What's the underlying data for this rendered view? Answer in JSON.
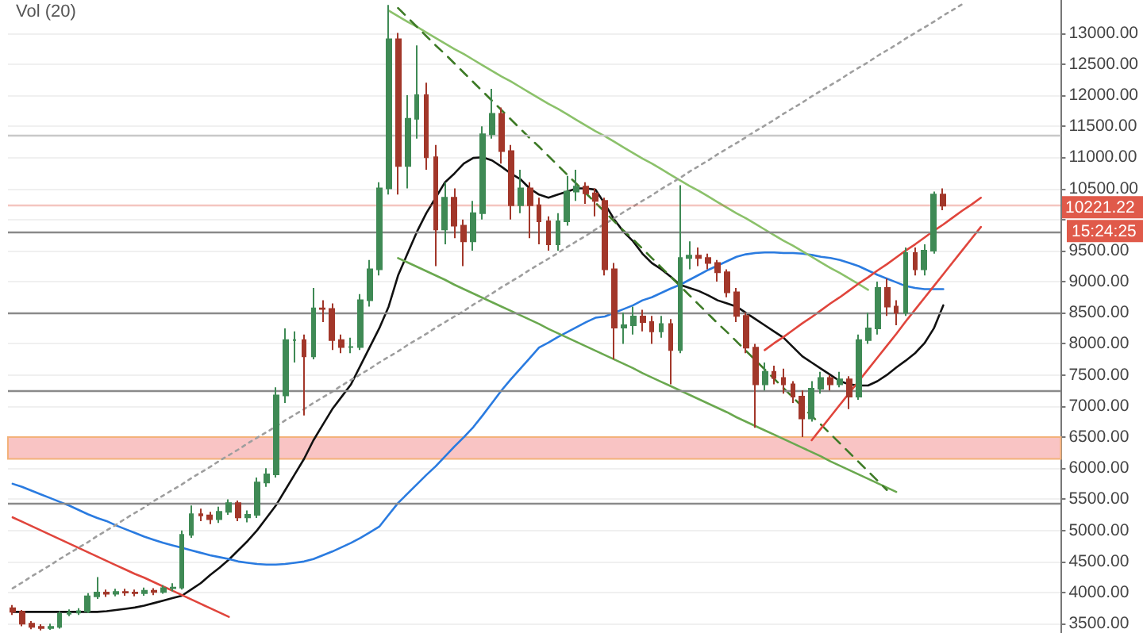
{
  "chart_data": {
    "type": "candlestick",
    "categories": [
      null,
      null,
      null,
      null,
      null,
      null,
      null,
      null,
      null,
      null,
      null,
      null,
      null,
      null,
      null,
      null,
      null,
      null,
      null,
      null,
      null,
      null,
      null,
      null,
      null,
      null,
      null,
      null,
      null,
      null,
      null,
      null,
      null,
      null,
      null,
      null,
      null,
      null,
      null,
      null,
      null,
      null,
      null,
      null,
      null,
      null,
      null,
      null,
      null,
      null,
      null,
      null,
      null,
      null,
      null,
      null,
      null,
      null,
      null,
      null,
      null,
      null,
      null,
      null,
      null,
      null,
      null,
      null,
      null,
      null,
      null,
      null,
      null,
      null,
      null,
      null,
      null,
      null,
      null,
      null,
      null,
      null,
      null,
      null,
      null,
      null,
      null,
      null,
      null,
      null,
      null,
      null,
      null,
      null,
      null,
      null,
      null,
      null,
      null,
      null,
      null,
      null,
      null,
      null,
      null,
      null,
      null,
      null,
      null,
      null,
      null,
      null
    ],
    "ohlc": [
      [
        3750,
        3800,
        3640,
        3690
      ],
      [
        3690,
        3720,
        3460,
        3500
      ],
      [
        3500,
        3540,
        3410,
        3450
      ],
      [
        3450,
        3490,
        3390,
        3430
      ],
      [
        3430,
        3500,
        3400,
        3450
      ],
      [
        3450,
        3700,
        3420,
        3660
      ],
      [
        3660,
        3730,
        3620,
        3680
      ],
      [
        3680,
        3750,
        3640,
        3700
      ],
      [
        3700,
        3990,
        3670,
        3940
      ],
      [
        3940,
        4250,
        3900,
        4000
      ],
      [
        4000,
        4050,
        3930,
        3980
      ],
      [
        3980,
        4060,
        3940,
        4010
      ],
      [
        4010,
        4060,
        3950,
        4000
      ],
      [
        4000,
        4050,
        3940,
        3990
      ],
      [
        3990,
        4080,
        3950,
        4030
      ],
      [
        4030,
        4070,
        3960,
        4010
      ],
      [
        4010,
        4120,
        3980,
        4070
      ],
      [
        4070,
        4150,
        4020,
        4080
      ],
      [
        4080,
        5000,
        4050,
        4930
      ],
      [
        4930,
        5400,
        4880,
        5260
      ],
      [
        5260,
        5350,
        5150,
        5240
      ],
      [
        5240,
        5300,
        5100,
        5180
      ],
      [
        5180,
        5380,
        5120,
        5300
      ],
      [
        5300,
        5500,
        5250,
        5440
      ],
      [
        5440,
        5480,
        5150,
        5210
      ],
      [
        5210,
        5320,
        5130,
        5250
      ],
      [
        5250,
        5850,
        5200,
        5770
      ],
      [
        5770,
        6000,
        5700,
        5900
      ],
      [
        5900,
        7300,
        5850,
        7170
      ],
      [
        7170,
        8250,
        7050,
        8060
      ],
      [
        8060,
        8200,
        7700,
        8060
      ],
      [
        8060,
        8150,
        6850,
        7800
      ],
      [
        7800,
        8900,
        7750,
        8570
      ],
      [
        8570,
        8700,
        8350,
        8560
      ],
      [
        8560,
        8650,
        7900,
        8060
      ],
      [
        8060,
        8150,
        7850,
        7950
      ],
      [
        7950,
        8100,
        7850,
        7950
      ],
      [
        7950,
        8800,
        7900,
        8700
      ],
      [
        8700,
        9350,
        8600,
        9200
      ],
      [
        9200,
        10600,
        9100,
        10500
      ],
      [
        10500,
        13450,
        10400,
        12900
      ],
      [
        12900,
        13000,
        10400,
        10860
      ],
      [
        10860,
        12000,
        10500,
        11620
      ],
      [
        11620,
        12800,
        11300,
        12000
      ],
      [
        12000,
        12200,
        10800,
        11000
      ],
      [
        11000,
        11200,
        9250,
        9840
      ],
      [
        9840,
        10600,
        9600,
        10350
      ],
      [
        10350,
        10500,
        9700,
        9900
      ],
      [
        9900,
        10000,
        9250,
        9650
      ],
      [
        9650,
        10300,
        9500,
        10100
      ],
      [
        10100,
        11500,
        10000,
        11370
      ],
      [
        11370,
        12100,
        11300,
        11700
      ],
      [
        11700,
        11800,
        10900,
        11100
      ],
      [
        11100,
        11200,
        10000,
        10230
      ],
      [
        10230,
        10800,
        10100,
        10500
      ],
      [
        10500,
        10600,
        9700,
        10230
      ],
      [
        10230,
        10350,
        9600,
        9970
      ],
      [
        9970,
        10050,
        9500,
        9600
      ],
      [
        9600,
        10100,
        9500,
        9970
      ],
      [
        9970,
        10700,
        9900,
        10450
      ],
      [
        10450,
        10800,
        10300,
        10530
      ],
      [
        10530,
        10600,
        10250,
        10420
      ],
      [
        10420,
        10500,
        10050,
        10300
      ],
      [
        10300,
        10350,
        9100,
        9200
      ],
      [
        9200,
        9300,
        7750,
        8260
      ],
      [
        8260,
        8500,
        8000,
        8300
      ],
      [
        8300,
        8600,
        8150,
        8440
      ],
      [
        8440,
        8550,
        8200,
        8350
      ],
      [
        8350,
        8450,
        8000,
        8200
      ],
      [
        8200,
        8450,
        8100,
        8320
      ],
      [
        8320,
        8400,
        7350,
        7900
      ],
      [
        7900,
        10550,
        7850,
        9380
      ],
      [
        9380,
        9650,
        9200,
        9420
      ],
      [
        9420,
        9550,
        9250,
        9380
      ],
      [
        9380,
        9450,
        9200,
        9300
      ],
      [
        9300,
        9350,
        9000,
        9150
      ],
      [
        9150,
        9200,
        8750,
        8830
      ],
      [
        8830,
        8900,
        8350,
        8450
      ],
      [
        8450,
        8500,
        7850,
        7940
      ],
      [
        7940,
        8000,
        6650,
        7350
      ],
      [
        7350,
        7700,
        7250,
        7550
      ],
      [
        7550,
        7650,
        7350,
        7450
      ],
      [
        7450,
        7600,
        7200,
        7350
      ],
      [
        7350,
        7400,
        7050,
        7150
      ],
      [
        7150,
        7250,
        6500,
        6800
      ],
      [
        6800,
        7400,
        6750,
        7280
      ],
      [
        7280,
        7550,
        7200,
        7450
      ],
      [
        7450,
        7500,
        7250,
        7350
      ],
      [
        7350,
        7550,
        7300,
        7430
      ],
      [
        7430,
        7480,
        6950,
        7150
      ],
      [
        7150,
        8150,
        7100,
        8060
      ],
      [
        8060,
        8500,
        8000,
        8250
      ],
      [
        8250,
        9000,
        8150,
        8900
      ],
      [
        8900,
        9050,
        8450,
        8600
      ],
      [
        8600,
        8700,
        8300,
        8500
      ],
      [
        8500,
        9550,
        8450,
        9460
      ],
      [
        9460,
        9550,
        9100,
        9200
      ],
      [
        9200,
        9600,
        9100,
        9500
      ],
      [
        9500,
        10450,
        9450,
        10400
      ],
      [
        10400,
        10500,
        10150,
        10221.22
      ],
      null,
      null,
      null,
      null,
      null,
      null,
      null,
      null,
      null,
      null,
      null,
      null
    ],
    "series": [
      {
        "type": "line",
        "color": "#111111",
        "values": [
          3690,
          3690,
          3690,
          3690,
          3690,
          3690,
          3690,
          3690,
          3690,
          3690,
          3700,
          3720,
          3740,
          3760,
          3790,
          3830,
          3870,
          3910,
          3950,
          4050,
          4150,
          4280,
          4400,
          4530,
          4680,
          4830,
          5000,
          5200,
          5400,
          5650,
          5900,
          6150,
          6450,
          6700,
          6950,
          7150,
          7350,
          7650,
          7950,
          8250,
          8600,
          9100,
          9450,
          9800,
          10100,
          10350,
          10600,
          10740,
          10900,
          10990,
          11000,
          10950,
          10850,
          10740,
          10650,
          10500,
          10400,
          10350,
          10400,
          10450,
          10500,
          10500,
          10480,
          10250,
          10000,
          9800,
          9650,
          9450,
          9300,
          9200,
          9080,
          8950,
          8900,
          8850,
          8780,
          8700,
          8650,
          8600,
          8500,
          8400,
          8300,
          8200,
          8100,
          7950,
          7800,
          7700,
          7600,
          7500,
          7400,
          7350,
          7330,
          7330,
          7400,
          7500,
          7620,
          7730,
          7850,
          8010,
          8250,
          8620,
          null,
          null,
          null,
          null,
          null,
          null,
          null,
          null,
          null,
          null,
          null,
          null
        ]
      },
      {
        "type": "line",
        "color": "#2a7be0",
        "values": [
          5750,
          5700,
          5640,
          5580,
          5520,
          5460,
          5400,
          5330,
          5260,
          5200,
          5150,
          5080,
          5020,
          4960,
          4900,
          4850,
          4800,
          4760,
          4720,
          4680,
          4640,
          4600,
          4570,
          4540,
          4500,
          4480,
          4460,
          4450,
          4450,
          4460,
          4480,
          4500,
          4540,
          4600,
          4660,
          4730,
          4800,
          4880,
          4970,
          5060,
          5250,
          5440,
          5590,
          5740,
          5890,
          6030,
          6190,
          6350,
          6500,
          6660,
          6850,
          7050,
          7250,
          7430,
          7600,
          7770,
          7940,
          8020,
          8110,
          8190,
          8270,
          8350,
          8420,
          8440,
          8500,
          8560,
          8620,
          8700,
          8750,
          8820,
          8890,
          8950,
          9030,
          9110,
          9190,
          9260,
          9330,
          9400,
          9440,
          9460,
          9470,
          9470,
          9460,
          9460,
          9450,
          9430,
          9400,
          9380,
          9350,
          9300,
          9250,
          9180,
          9110,
          9050,
          8990,
          8930,
          8900,
          8880,
          8880,
          8880,
          null,
          null,
          null,
          null,
          null,
          null,
          null,
          null,
          null,
          null,
          null,
          null
        ]
      },
      {
        "type": "line",
        "color": "#8bc16a",
        "values": [
          null,
          null,
          null,
          null,
          null,
          null,
          null,
          null,
          null,
          null,
          null,
          null,
          null,
          null,
          null,
          null,
          null,
          null,
          null,
          null,
          null,
          null,
          null,
          null,
          null,
          null,
          null,
          null,
          null,
          null,
          null,
          null,
          null,
          null,
          null,
          null,
          null,
          null,
          null,
          null,
          13360,
          13270,
          13180,
          13100,
          13010,
          12920,
          12830,
          12740,
          12660,
          12570,
          12480,
          12390,
          12300,
          12220,
          12130,
          12040,
          11950,
          11860,
          11780,
          11690,
          11600,
          11510,
          11420,
          11340,
          11250,
          11160,
          11070,
          10980,
          10900,
          10810,
          10720,
          10630,
          10540,
          10460,
          10370,
          10280,
          10190,
          10100,
          10020,
          9930,
          9840,
          9750,
          9660,
          9580,
          9490,
          9400,
          9310,
          9220,
          9140,
          9050,
          8960,
          8870,
          null,
          null,
          null,
          null,
          null,
          null,
          null,
          null,
          null,
          null,
          null,
          null,
          null,
          null,
          null,
          null,
          null,
          null,
          null,
          null
        ]
      },
      {
        "type": "line",
        "color": "#6aa84f",
        "values": [
          null,
          null,
          null,
          null,
          null,
          null,
          null,
          null,
          null,
          null,
          null,
          null,
          null,
          null,
          null,
          null,
          null,
          null,
          null,
          null,
          null,
          null,
          null,
          null,
          null,
          null,
          null,
          null,
          null,
          null,
          null,
          null,
          null,
          null,
          null,
          null,
          null,
          null,
          null,
          null,
          null,
          9380,
          9310,
          9240,
          9170,
          9100,
          9030,
          8950,
          8880,
          8810,
          8740,
          8670,
          8600,
          8530,
          8460,
          8390,
          8320,
          8240,
          8170,
          8100,
          8030,
          7960,
          7890,
          7820,
          7750,
          7680,
          7610,
          7530,
          7460,
          7390,
          7320,
          7250,
          7180,
          7110,
          7040,
          6970,
          6900,
          6820,
          6750,
          6680,
          6610,
          6540,
          6470,
          6400,
          6330,
          6260,
          6190,
          6110,
          6040,
          5970,
          5900,
          5830,
          5760,
          5690,
          5620,
          null,
          null,
          null,
          null,
          null,
          null,
          null,
          null,
          null,
          null,
          null,
          null,
          null,
          null,
          null,
          null,
          null
        ]
      },
      {
        "type": "line",
        "color": "#3d7a26",
        "line_style": "dashed",
        "values": [
          null,
          null,
          null,
          null,
          null,
          null,
          null,
          null,
          null,
          null,
          null,
          null,
          null,
          null,
          null,
          null,
          null,
          null,
          null,
          null,
          null,
          null,
          null,
          null,
          null,
          null,
          null,
          null,
          null,
          null,
          null,
          null,
          null,
          null,
          null,
          null,
          null,
          null,
          null,
          null,
          null,
          13400,
          13250,
          13100,
          12950,
          12800,
          12660,
          12510,
          12360,
          12210,
          12060,
          11910,
          11760,
          11610,
          11460,
          11310,
          11170,
          11020,
          10870,
          10720,
          10570,
          10420,
          10270,
          10120,
          9970,
          9820,
          9680,
          9530,
          9380,
          9230,
          9080,
          8930,
          8780,
          8630,
          8480,
          8330,
          8190,
          8040,
          7890,
          7740,
          7590,
          7440,
          7290,
          7140,
          6990,
          6840,
          6700,
          6550,
          6400,
          6250,
          6100,
          5950,
          5800,
          5650,
          null,
          null,
          null,
          null,
          null,
          null,
          null,
          null,
          null,
          null,
          null,
          null,
          null,
          null,
          null,
          null,
          null,
          null
        ]
      },
      {
        "type": "line",
        "color": "#e0453c",
        "values": [
          null,
          null,
          null,
          null,
          null,
          null,
          null,
          null,
          null,
          null,
          null,
          null,
          null,
          null,
          null,
          null,
          null,
          null,
          null,
          null,
          null,
          null,
          null,
          null,
          null,
          null,
          null,
          null,
          null,
          null,
          null,
          null,
          null,
          null,
          null,
          null,
          null,
          null,
          null,
          null,
          null,
          null,
          null,
          null,
          null,
          null,
          null,
          null,
          null,
          null,
          null,
          null,
          null,
          null,
          null,
          null,
          null,
          null,
          null,
          null,
          null,
          null,
          null,
          null,
          null,
          null,
          null,
          null,
          null,
          null,
          null,
          null,
          null,
          null,
          null,
          null,
          null,
          null,
          null,
          null,
          7900,
          8010,
          8110,
          8220,
          8330,
          8430,
          8540,
          8650,
          8750,
          8860,
          8970,
          9070,
          9180,
          9280,
          9390,
          9500,
          9600,
          9710,
          9820,
          9920,
          10030,
          10140,
          10240,
          10350,
          null,
          null,
          null,
          null,
          null,
          null,
          null,
          null
        ]
      },
      {
        "type": "line",
        "color": "#e0453c",
        "values": [
          null,
          null,
          null,
          null,
          null,
          null,
          null,
          null,
          null,
          null,
          null,
          null,
          null,
          null,
          null,
          null,
          null,
          null,
          null,
          null,
          null,
          null,
          null,
          null,
          null,
          null,
          null,
          null,
          null,
          null,
          null,
          null,
          null,
          null,
          null,
          null,
          null,
          null,
          null,
          null,
          null,
          null,
          null,
          null,
          null,
          null,
          null,
          null,
          null,
          null,
          null,
          null,
          null,
          null,
          null,
          null,
          null,
          null,
          null,
          null,
          null,
          null,
          null,
          null,
          null,
          null,
          null,
          null,
          null,
          null,
          null,
          null,
          null,
          null,
          null,
          null,
          null,
          null,
          null,
          null,
          null,
          null,
          null,
          null,
          null,
          6450,
          6640,
          6830,
          7020,
          7210,
          7400,
          7590,
          7780,
          7970,
          8160,
          8360,
          8550,
          8740,
          8930,
          9120,
          9310,
          9500,
          9690,
          9880,
          null,
          null,
          null,
          null,
          null,
          null,
          null,
          null
        ]
      },
      {
        "type": "line",
        "color": "#e0453c",
        "values": [
          5210,
          5140,
          5070,
          5000,
          4930,
          4860,
          4790,
          4720,
          4650,
          4580,
          4510,
          4440,
          4370,
          4300,
          4240,
          4170,
          4100,
          4030,
          3960,
          3890,
          3820,
          3750,
          3680,
          3610,
          null,
          null,
          null,
          null,
          null,
          null,
          null,
          null,
          null,
          null,
          null,
          null,
          null,
          null,
          null,
          null,
          null,
          null,
          null,
          null,
          null,
          null,
          null,
          null,
          null,
          null,
          null,
          null,
          null,
          null,
          null,
          null,
          null,
          null,
          null,
          null,
          null,
          null,
          null,
          null,
          null,
          null,
          null,
          null,
          null,
          null,
          null,
          null,
          null,
          null,
          null,
          null,
          null,
          null,
          null,
          null,
          null,
          null,
          null,
          null,
          null,
          null,
          null,
          null,
          null,
          null,
          null,
          null,
          null,
          null,
          null,
          null,
          null,
          null,
          null,
          null,
          null,
          null,
          null,
          null,
          null,
          null,
          null,
          null,
          null,
          null,
          null,
          null
        ]
      },
      {
        "type": "line",
        "color": "#9e9e9e",
        "line_style": "dotted",
        "values": [
          4070,
          4160,
          4260,
          4350,
          4440,
          4540,
          4630,
          4720,
          4810,
          4910,
          5000,
          5090,
          5190,
          5280,
          5370,
          5470,
          5560,
          5650,
          5740,
          5840,
          5930,
          6020,
          6120,
          6210,
          6300,
          6400,
          6490,
          6580,
          6670,
          6770,
          6860,
          6950,
          7050,
          7140,
          7230,
          7330,
          7420,
          7510,
          7600,
          7700,
          7790,
          7880,
          7980,
          8070,
          8160,
          8260,
          8350,
          8440,
          8530,
          8630,
          8720,
          8810,
          8910,
          9000,
          9090,
          9190,
          9280,
          9370,
          9460,
          9560,
          9650,
          9740,
          9840,
          9930,
          10020,
          10120,
          10210,
          10300,
          10390,
          10490,
          10580,
          10670,
          10770,
          10860,
          10950,
          11050,
          11140,
          11230,
          11320,
          11420,
          11510,
          11600,
          11700,
          11790,
          11880,
          11980,
          12070,
          12160,
          12250,
          12350,
          12440,
          12530,
          12630,
          12720,
          12810,
          12910,
          13000,
          13090,
          13180,
          13280,
          13370,
          13460,
          null,
          null,
          null,
          null,
          null,
          null,
          null,
          null,
          null,
          null
        ]
      }
    ],
    "ref_lines": [
      {
        "axis": "y",
        "value": 11350,
        "color": "#c8c8c8"
      },
      {
        "axis": "y",
        "value": 10221.22,
        "label": "10221.22",
        "color": "#e05a4a"
      },
      {
        "axis": "y",
        "value": 9790,
        "color": "#8a8a8a"
      },
      {
        "axis": "y",
        "value": 8500,
        "color": "#8a8a8a"
      },
      {
        "axis": "y",
        "value": 7250,
        "color": "#8a8a8a"
      },
      {
        "axis": "y",
        "value": 5440,
        "color": "#8a8a8a"
      }
    ],
    "bands": [
      {
        "axis": "y",
        "from": 6150,
        "to": 6500,
        "color": "#f9c4c4"
      }
    ],
    "annotations": [
      "Vol (20)",
      "15:24:25"
    ],
    "ylim": [
      3350,
      13530
    ],
    "yticks": [
      {
        "value": 3500,
        "label": "3500.00"
      },
      {
        "value": 4000,
        "label": "4000.00"
      },
      {
        "value": 4500,
        "label": "4500.00"
      },
      {
        "value": 5000,
        "label": "5000.00"
      },
      {
        "value": 5500,
        "label": "5500.00"
      },
      {
        "value": 6000,
        "label": "6000.00"
      },
      {
        "value": 6500,
        "label": "6500.00"
      },
      {
        "value": 7000,
        "label": "7000.00"
      },
      {
        "value": 7500,
        "label": "7500.00"
      },
      {
        "value": 8000,
        "label": "8000.00"
      },
      {
        "value": 8500,
        "label": "8500.00"
      },
      {
        "value": 9000,
        "label": "9000.00"
      },
      {
        "value": 9500,
        "label": "9500.00"
      },
      {
        "value": 10000,
        "label": null
      },
      {
        "value": 10500,
        "label": "10500.00"
      },
      {
        "value": 11000,
        "label": "11000.00"
      },
      {
        "value": 11500,
        "label": "11500.00"
      },
      {
        "value": 12000,
        "label": "12000.00"
      },
      {
        "value": 12500,
        "label": "12500.00"
      },
      {
        "value": 13000,
        "label": "13000.00"
      }
    ],
    "tick_labels": "y",
    "grid": "y"
  }
}
